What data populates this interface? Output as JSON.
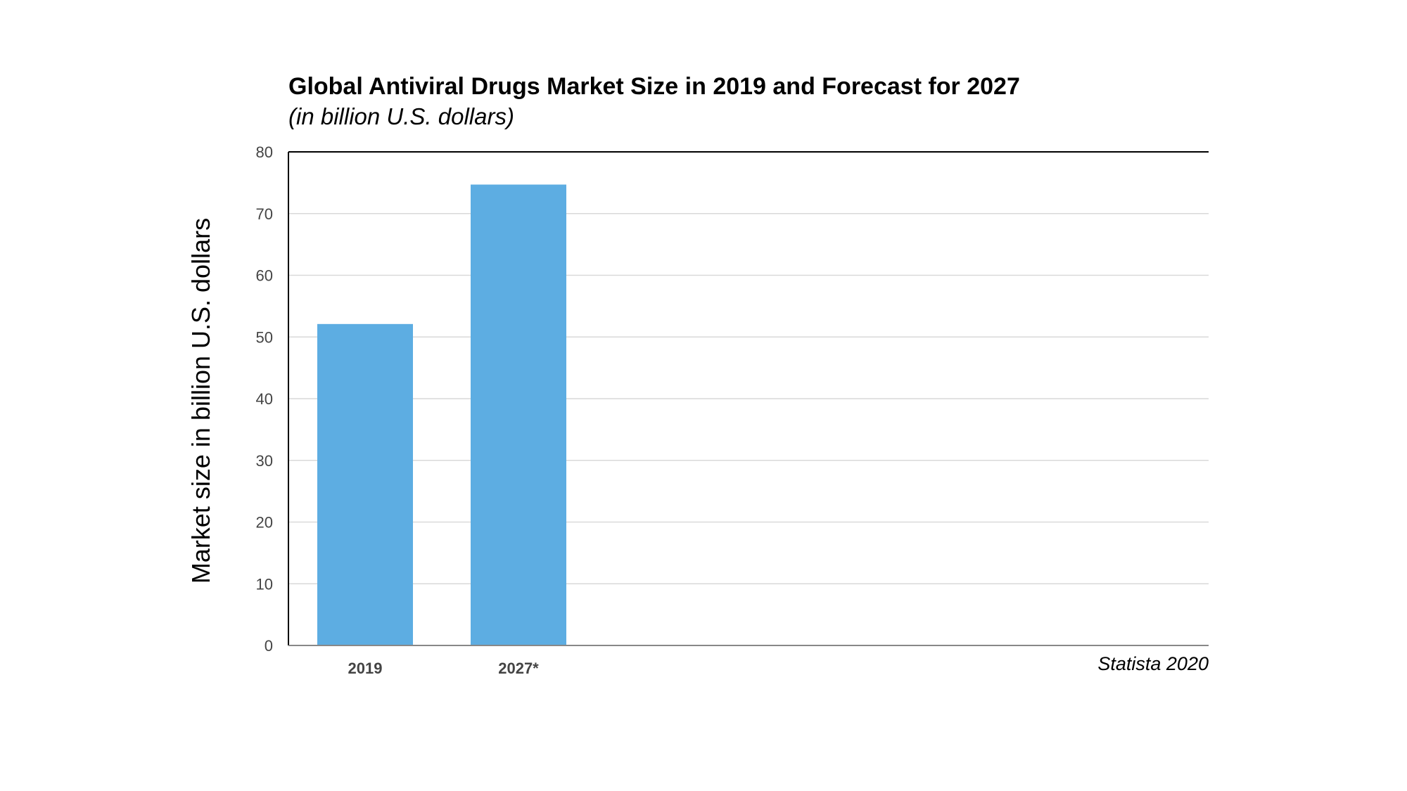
{
  "chart_data": {
    "type": "bar",
    "title": "Global Antiviral Drugs Market Size in 2019 and Forecast for 2027",
    "subtitle": "(in billion U.S. dollars)",
    "xlabel": "",
    "ylabel": "Market size in billion U.S. dollars",
    "categories": [
      "2019",
      "2027*"
    ],
    "values": [
      52.1,
      74.7
    ],
    "ylim": [
      0,
      80
    ],
    "yticks": [
      0,
      10,
      20,
      30,
      40,
      50,
      60,
      70,
      80
    ],
    "grid": true,
    "bar_color": "#5dade2",
    "source": "Statista 2020"
  }
}
